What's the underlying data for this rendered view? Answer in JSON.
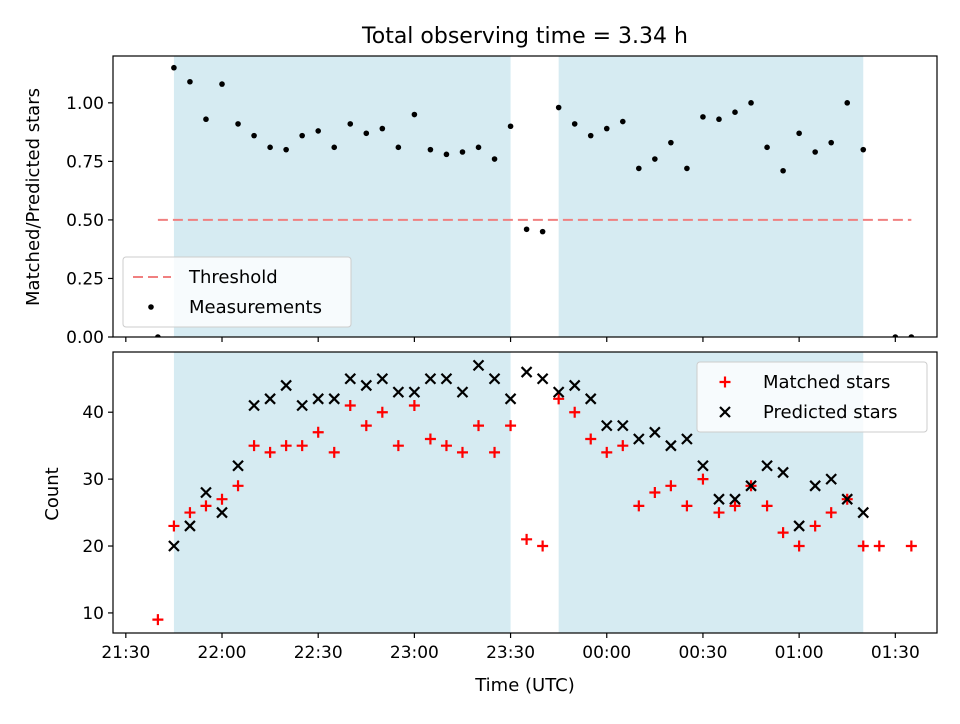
{
  "chart_data": [
    {
      "type": "scatter",
      "title": "Total observing time = 3.34 h",
      "xlabel": "",
      "ylabel": "Matched/Predicted stars",
      "xlim": [
        "21:26",
        "01:43"
      ],
      "ylim": [
        0,
        1.2
      ],
      "y_ticks": [
        0.0,
        0.25,
        0.5,
        0.75,
        1.0
      ],
      "y_tick_labels": [
        "0.00",
        "0.25",
        "0.50",
        "0.75",
        "1.00"
      ],
      "legend_position": "bottom-left",
      "shaded_intervals": [
        [
          "21:45",
          "23:30"
        ],
        [
          "23:45",
          "01:20"
        ]
      ],
      "shade_color": "#add8e6",
      "threshold": {
        "name": "Threshold",
        "value": 0.5,
        "x_range": [
          "21:40",
          "01:35"
        ],
        "color": "#f08080",
        "style": "dashed"
      },
      "series": [
        {
          "name": "Measurements",
          "marker": "dot",
          "color": "#000000",
          "x": [
            "21:40",
            "21:45",
            "21:50",
            "21:55",
            "22:00",
            "22:05",
            "22:10",
            "22:15",
            "22:20",
            "22:25",
            "22:30",
            "22:35",
            "22:40",
            "22:45",
            "22:50",
            "22:55",
            "23:00",
            "23:05",
            "23:10",
            "23:15",
            "23:20",
            "23:25",
            "23:30",
            "23:35",
            "23:40",
            "23:45",
            "23:50",
            "23:55",
            "00:00",
            "00:05",
            "00:10",
            "00:15",
            "00:20",
            "00:25",
            "00:30",
            "00:35",
            "00:40",
            "00:45",
            "00:50",
            "00:55",
            "01:00",
            "01:05",
            "01:10",
            "01:15",
            "01:20",
            "01:25",
            "01:30",
            "01:35"
          ],
          "y": [
            0.0,
            1.15,
            1.09,
            0.93,
            1.08,
            0.91,
            0.86,
            0.81,
            0.8,
            0.86,
            0.88,
            0.81,
            0.91,
            0.87,
            0.89,
            0.81,
            0.95,
            0.8,
            0.78,
            0.79,
            0.81,
            0.76,
            0.9,
            0.46,
            0.45,
            0.98,
            0.91,
            0.86,
            0.89,
            0.92,
            0.72,
            0.76,
            0.83,
            0.72,
            0.94,
            0.93,
            0.96,
            1.0,
            0.81,
            0.71,
            0.87,
            0.79,
            0.83,
            1.0,
            0.8,
            null,
            0.0,
            0.0
          ]
        }
      ]
    },
    {
      "type": "scatter",
      "title": "",
      "xlabel": "Time (UTC)",
      "ylabel": "Count",
      "xlim": [
        "21:26",
        "01:43"
      ],
      "ylim": [
        7,
        49
      ],
      "y_ticks": [
        10,
        20,
        30,
        40
      ],
      "x_ticks": [
        "21:30",
        "22:00",
        "22:30",
        "23:00",
        "23:30",
        "00:00",
        "00:30",
        "01:00",
        "01:30"
      ],
      "legend_position": "top-right",
      "shaded_intervals": [
        [
          "21:45",
          "23:30"
        ],
        [
          "23:45",
          "01:20"
        ]
      ],
      "shade_color": "#add8e6",
      "series": [
        {
          "name": "Matched stars",
          "marker": "plus",
          "color": "#ff0000",
          "x": [
            "21:40",
            "21:45",
            "21:50",
            "21:55",
            "22:00",
            "22:05",
            "22:10",
            "22:15",
            "22:20",
            "22:25",
            "22:30",
            "22:35",
            "22:40",
            "22:45",
            "22:50",
            "22:55",
            "23:00",
            "23:05",
            "23:10",
            "23:15",
            "23:20",
            "23:25",
            "23:30",
            "23:35",
            "23:40",
            "23:45",
            "23:50",
            "23:55",
            "00:00",
            "00:05",
            "00:10",
            "00:15",
            "00:20",
            "00:25",
            "00:30",
            "00:35",
            "00:40",
            "00:45",
            "00:50",
            "00:55",
            "01:00",
            "01:05",
            "01:10",
            "01:15",
            "01:20",
            "01:25",
            "01:35"
          ],
          "y": [
            9,
            23,
            25,
            26,
            27,
            29,
            35,
            34,
            35,
            35,
            37,
            34,
            41,
            38,
            40,
            35,
            41,
            36,
            35,
            34,
            38,
            34,
            38,
            21,
            20,
            42,
            40,
            36,
            34,
            35,
            26,
            28,
            29,
            26,
            30,
            25,
            26,
            29,
            26,
            22,
            20,
            23,
            25,
            27,
            20,
            20,
            20
          ]
        },
        {
          "name": "Predicted stars",
          "marker": "x",
          "color": "#000000",
          "x": [
            "21:45",
            "21:50",
            "21:55",
            "22:00",
            "22:05",
            "22:10",
            "22:15",
            "22:20",
            "22:25",
            "22:30",
            "22:35",
            "22:40",
            "22:45",
            "22:50",
            "22:55",
            "23:00",
            "23:05",
            "23:10",
            "23:15",
            "23:20",
            "23:25",
            "23:30",
            "23:35",
            "23:40",
            "23:45",
            "23:50",
            "23:55",
            "00:00",
            "00:05",
            "00:10",
            "00:15",
            "00:20",
            "00:25",
            "00:30",
            "00:35",
            "00:40",
            "00:45",
            "00:50",
            "00:55",
            "01:00",
            "01:05",
            "01:10",
            "01:15",
            "01:20"
          ],
          "y": [
            20,
            23,
            28,
            25,
            32,
            41,
            42,
            44,
            41,
            42,
            42,
            45,
            44,
            45,
            43,
            43,
            45,
            45,
            43,
            47,
            45,
            42,
            46,
            45,
            43,
            44,
            42,
            38,
            38,
            36,
            37,
            35,
            36,
            32,
            27,
            27,
            29,
            32,
            31,
            23,
            29,
            30,
            27,
            25
          ]
        }
      ]
    }
  ]
}
